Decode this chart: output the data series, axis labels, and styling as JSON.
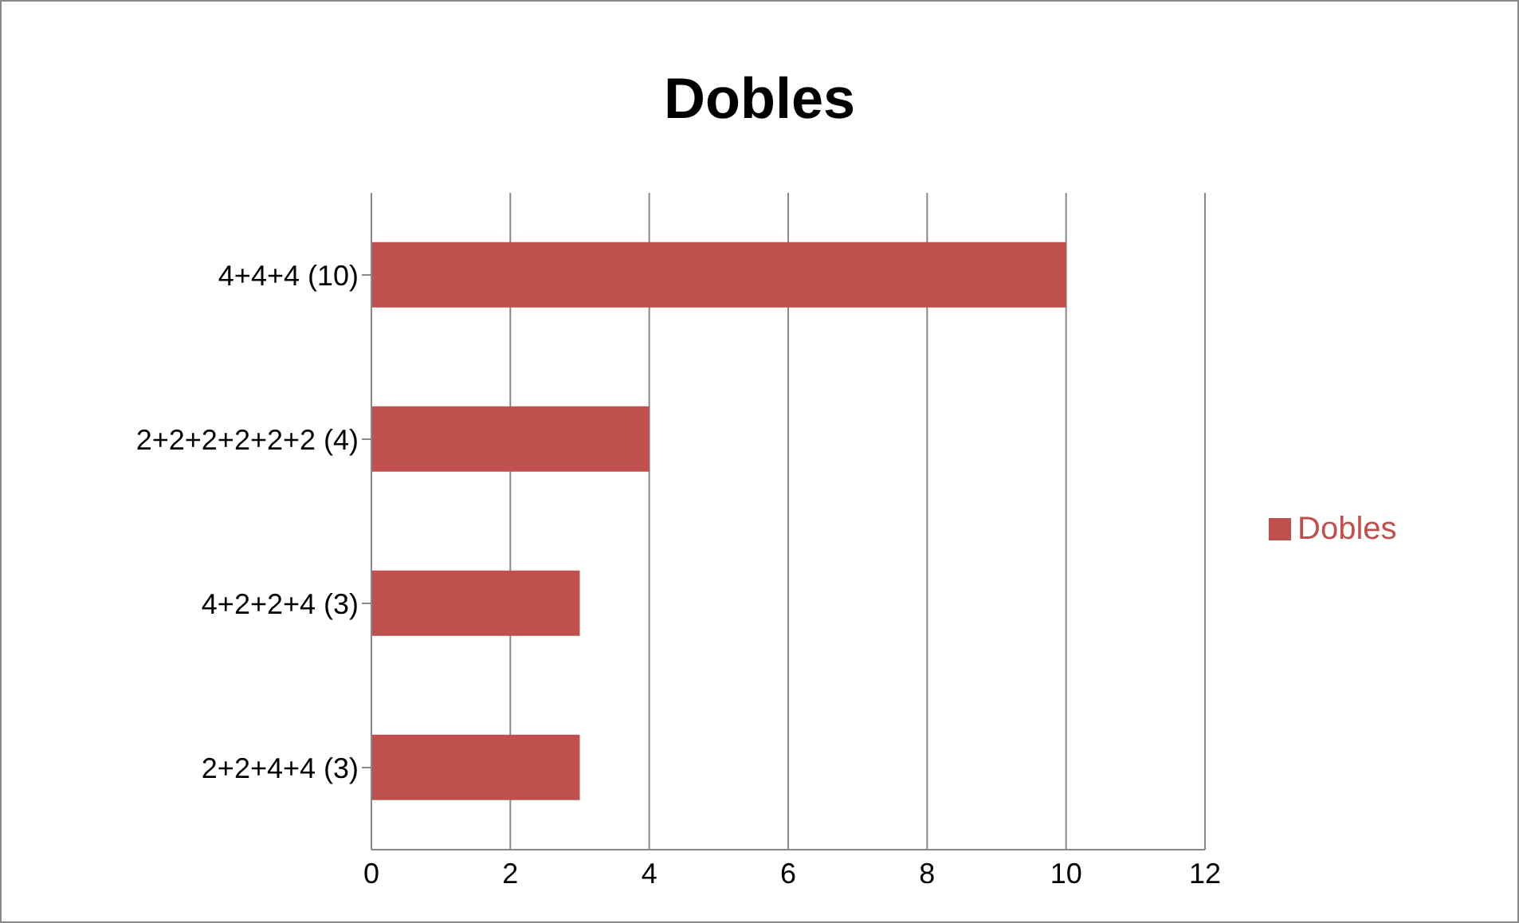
{
  "chart_data": {
    "type": "bar",
    "orientation": "horizontal",
    "title": "Dobles",
    "categories": [
      "4+4+4 (10)",
      "2+2+2+2+2+2 (4)",
      "4+2+2+4 (3)",
      "2+2+4+4 (3)"
    ],
    "series": [
      {
        "name": "Dobles",
        "color": "#c0504d",
        "values": [
          10,
          4,
          3,
          3
        ]
      }
    ],
    "xlim": [
      0,
      12
    ],
    "xticks": [
      0,
      2,
      4,
      6,
      8,
      10,
      12
    ],
    "grid": "x",
    "legend": "right"
  }
}
